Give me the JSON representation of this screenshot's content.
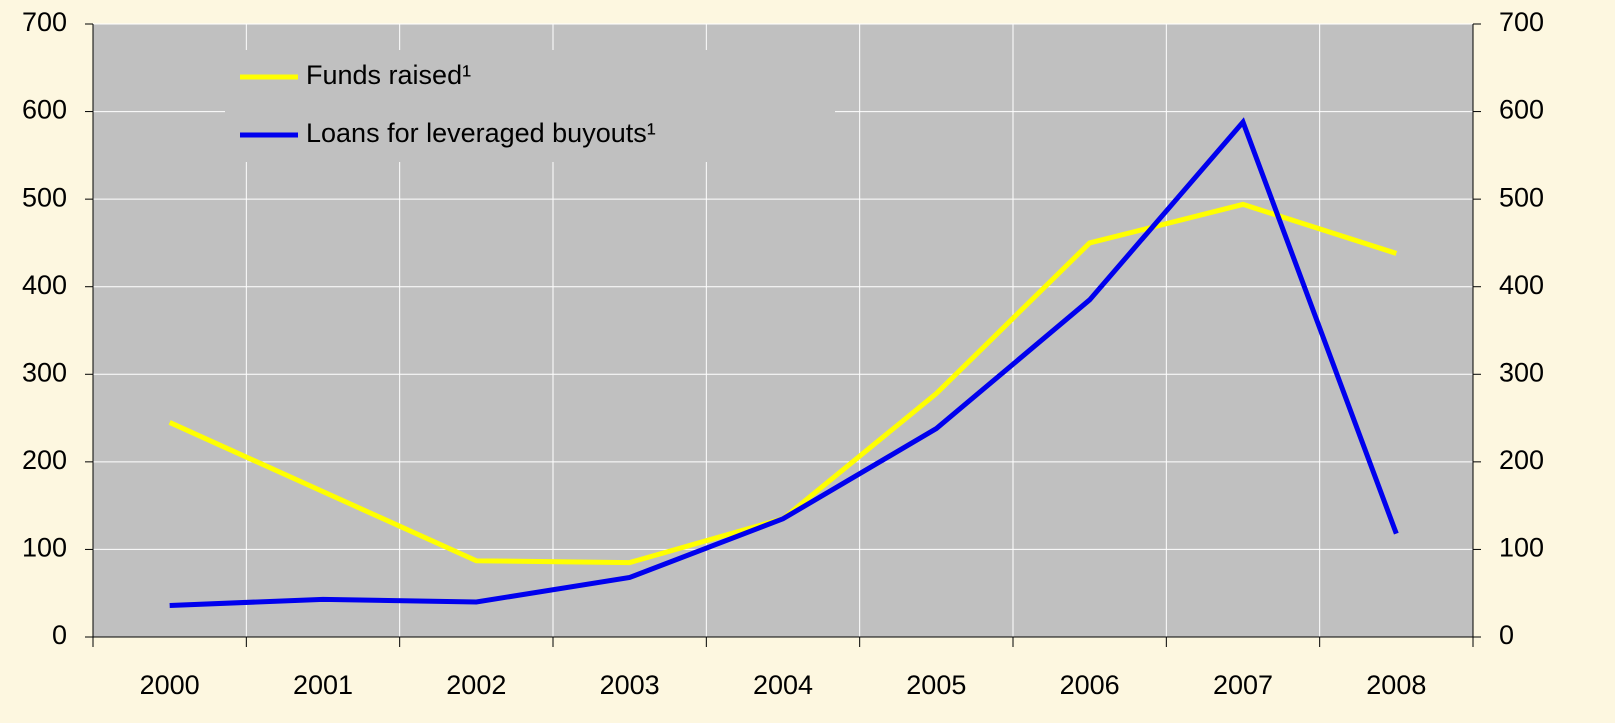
{
  "chart_data": {
    "type": "line",
    "categories": [
      "2000",
      "2001",
      "2002",
      "2003",
      "2004",
      "2005",
      "2006",
      "2007",
      "2008"
    ],
    "series": [
      {
        "name": "Funds raised¹",
        "color": "#ffff00",
        "values": [
          245,
          166,
          87,
          85,
          135,
          278,
          450,
          494,
          438
        ]
      },
      {
        "name": "Loans for leveraged buyouts¹",
        "color": "#0000ee",
        "values": [
          36,
          43,
          40,
          68,
          135,
          238,
          385,
          588,
          118
        ]
      }
    ],
    "ylim": [
      0,
      700
    ],
    "yticks": [
      0,
      100,
      200,
      300,
      400,
      500,
      600,
      700
    ],
    "y2lim": [
      0,
      700
    ],
    "y2ticks": [
      0,
      100,
      200,
      300,
      400,
      500,
      600,
      700
    ],
    "grid": true,
    "legend": "upper left"
  }
}
